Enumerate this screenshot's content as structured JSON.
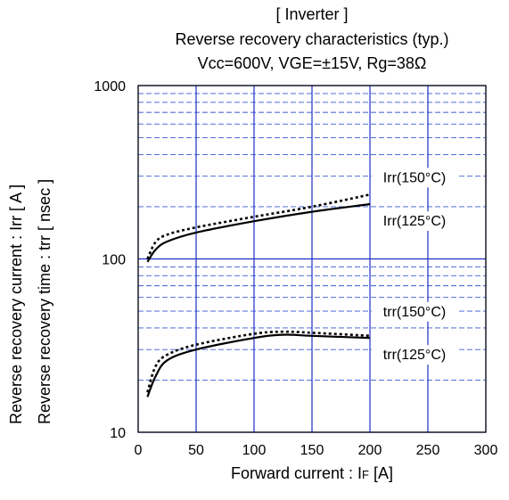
{
  "chart_data": {
    "type": "line",
    "title_lines": [
      "[ Inverter ]",
      "Reverse recovery characteristics  (typ.)",
      "Vcc=600V,  VGE=±15V,  Rg=38Ω"
    ],
    "xlabel_main": "Forward current : I",
    "xlabel_sub": "F",
    "xlabel_unit": " [A]",
    "ylabel_lines": [
      "Reverse recovery current  :  Irr  [ A ]",
      "Reverse recovery time  :  trr  [ nsec ]"
    ],
    "x_range": [
      0,
      300
    ],
    "y_range": [
      10,
      1000
    ],
    "y_scale": "log",
    "x_ticks": [
      "0",
      "50",
      "100",
      "150",
      "200",
      "250",
      "300"
    ],
    "y_ticks": [
      "10",
      "100",
      "1000"
    ],
    "grid": true,
    "series": [
      {
        "name": "Irr(150°C)",
        "style": "dotted",
        "x": [
          8,
          15,
          25,
          50,
          100,
          150,
          200
        ],
        "y": [
          100,
          125,
          138,
          152,
          175,
          200,
          235
        ]
      },
      {
        "name": "Irr(125°C)",
        "style": "solid",
        "x": [
          8,
          15,
          25,
          50,
          100,
          150,
          200
        ],
        "y": [
          96,
          113,
          126,
          142,
          165,
          187,
          207
        ]
      },
      {
        "name": "trr(150°C)",
        "style": "dotted",
        "x": [
          8,
          15,
          25,
          50,
          100,
          125,
          150,
          200
        ],
        "y": [
          17,
          24,
          28,
          32,
          37,
          38,
          37.5,
          36
        ]
      },
      {
        "name": "trr(125°C)",
        "style": "solid",
        "x": [
          8,
          15,
          25,
          50,
          100,
          125,
          150,
          200
        ],
        "y": [
          16,
          21,
          26,
          30,
          35,
          36.5,
          36,
          35
        ]
      }
    ]
  }
}
